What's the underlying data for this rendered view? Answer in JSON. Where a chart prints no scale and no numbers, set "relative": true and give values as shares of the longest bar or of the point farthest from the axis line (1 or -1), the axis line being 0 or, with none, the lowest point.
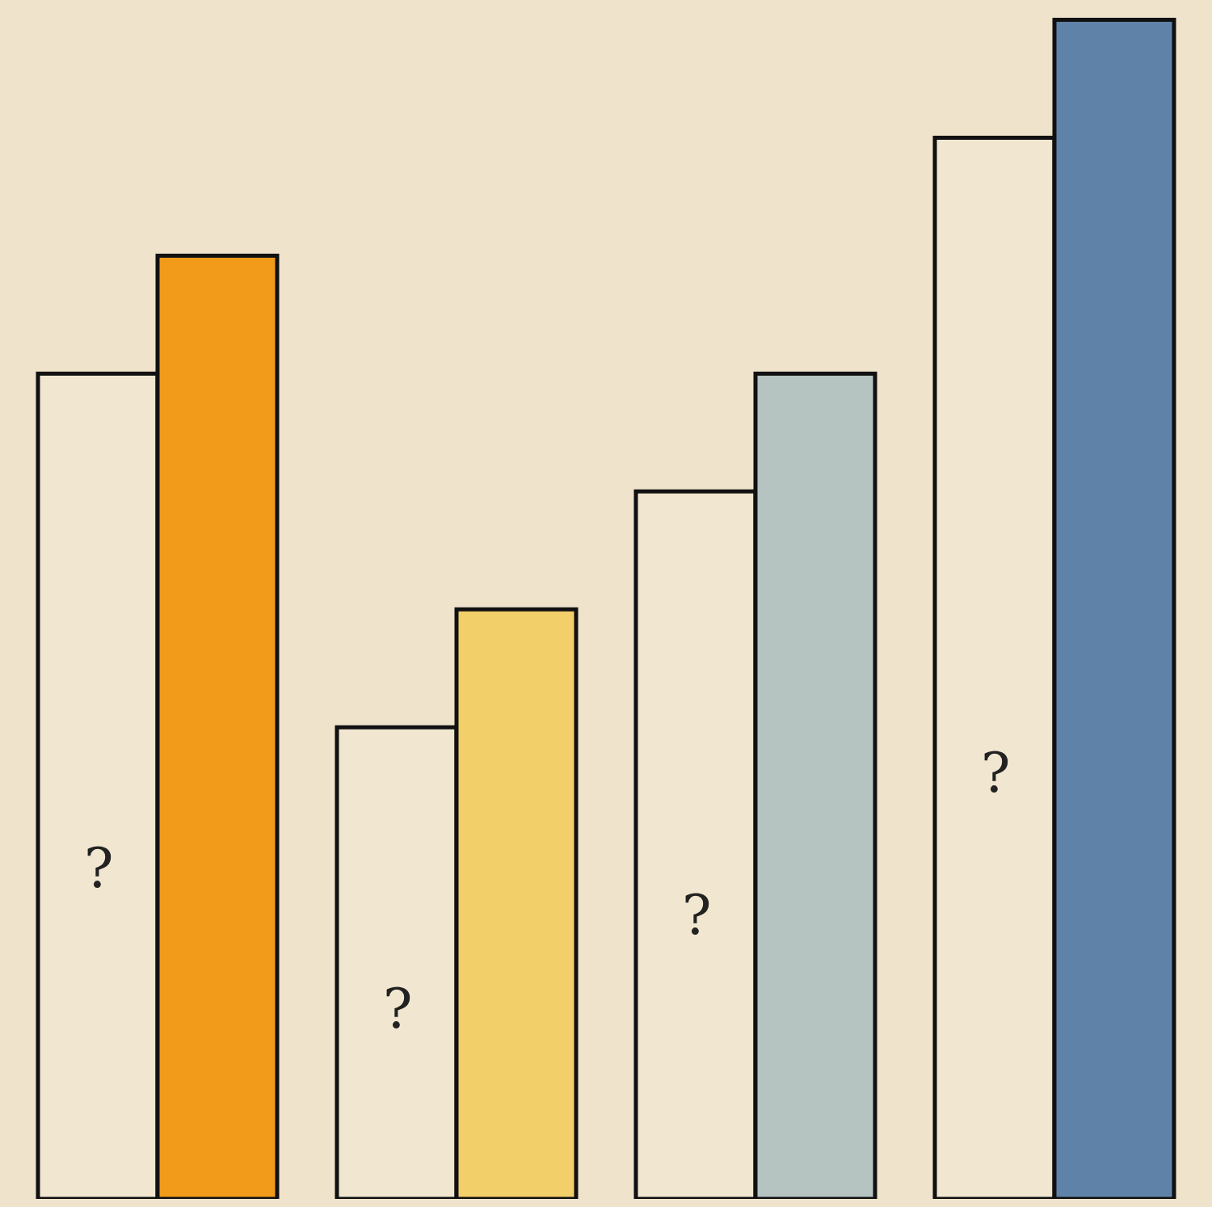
{
  "chart_data": {
    "type": "bar",
    "relative": true,
    "categories": [
      null,
      null,
      null,
      null
    ],
    "series": [
      {
        "color": "#f1e6d0",
        "values": [
          0.7,
          0.4,
          0.6,
          0.9
        ]
      },
      {
        "colors": [
          "#f29a1a",
          "#f3cf6a",
          "#b5c4c0",
          "#5f83a8"
        ],
        "values": [
          0.8,
          0.5,
          0.7,
          1.0
        ]
      }
    ],
    "annotations": [
      "?",
      "?",
      "?",
      "?"
    ]
  }
}
